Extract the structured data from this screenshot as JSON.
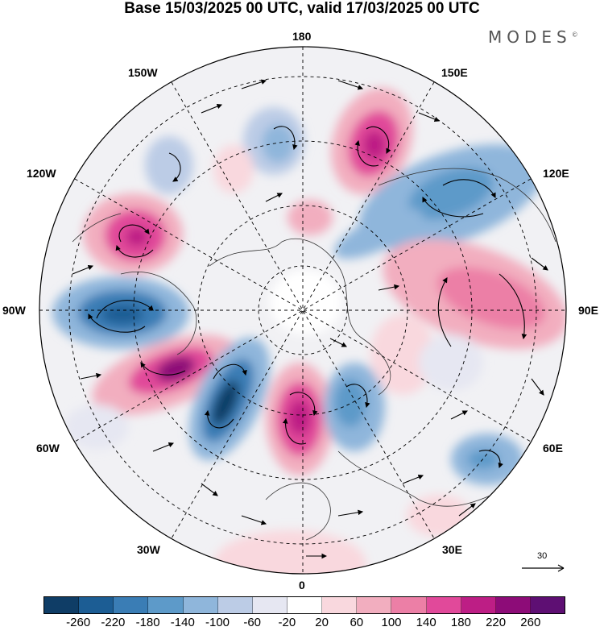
{
  "title": "Base 15/03/2025 00 UTC, valid 17/03/2025 00 UTC",
  "brand": "MODES",
  "brand_mark": "©",
  "longitude_labels": {
    "top": "180",
    "top_left": "150W",
    "top_right": "150E",
    "upper_left": "120W",
    "upper_right": "120E",
    "left": "90W",
    "right": "90E",
    "lower_left": "60W",
    "lower_right": "60E",
    "bottom_left": "30W",
    "bottom_right": "30E",
    "bottom": "0"
  },
  "vector_reference": {
    "label": "30"
  },
  "colorbar": {
    "colors": [
      "#0f3d66",
      "#1c5d94",
      "#3a7db5",
      "#5d9ac9",
      "#8fb6db",
      "#bccce6",
      "#e6e7f2",
      "#ffffff",
      "#f9d8de",
      "#f2aebf",
      "#ec7fa6",
      "#e1499a",
      "#bd1e85",
      "#8d0c78",
      "#5e0f73"
    ],
    "tick_labels": [
      "-260",
      "-220",
      "-180",
      "-140",
      "-100",
      "-60",
      "-20",
      "20",
      "60",
      "100",
      "140",
      "180",
      "220",
      "260"
    ]
  }
}
